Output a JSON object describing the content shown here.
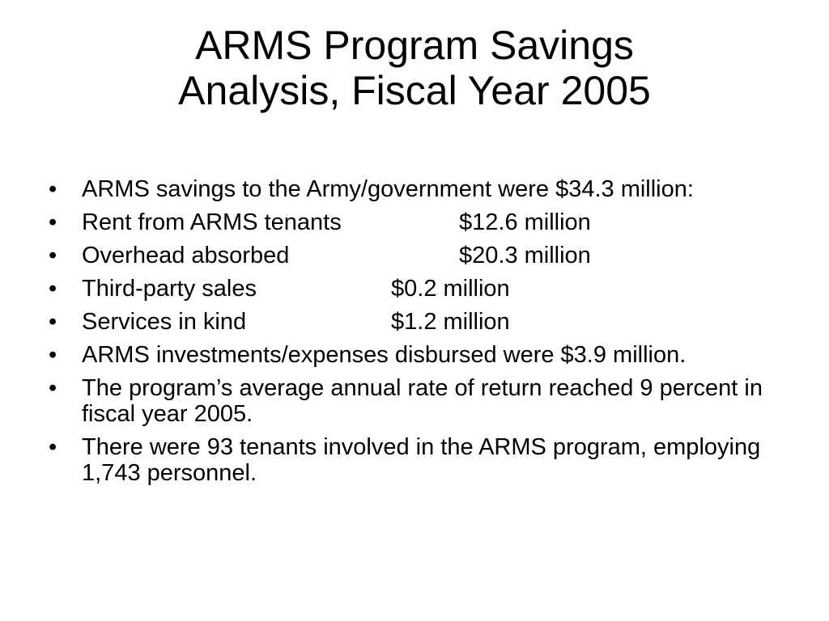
{
  "slide": {
    "title_line1": "ARMS Program Savings",
    "title_line2": "Analysis, Fiscal Year 2005",
    "bullet_char": "•",
    "bullets": [
      {
        "text": "ARMS savings to the Army/government were $34.3 million:"
      },
      {
        "label": " Rent from ARMS tenants",
        "value": "$12.6 million"
      },
      {
        "label": " Overhead absorbed",
        "value": "$20.3 million"
      },
      {
        "label": " Third-party sales",
        "value": "$0.2 million"
      },
      {
        "label": " Services in kind",
        "value": "$1.2 million"
      },
      {
        "text": " ARMS investments/expenses disbursed were $3.9 million."
      },
      {
        "text": " The program’s average annual rate of return reached 9 percent in fiscal year 2005."
      },
      {
        "text": " There were 93 tenants involved in the ARMS program, employing 1,743 personnel."
      }
    ]
  }
}
